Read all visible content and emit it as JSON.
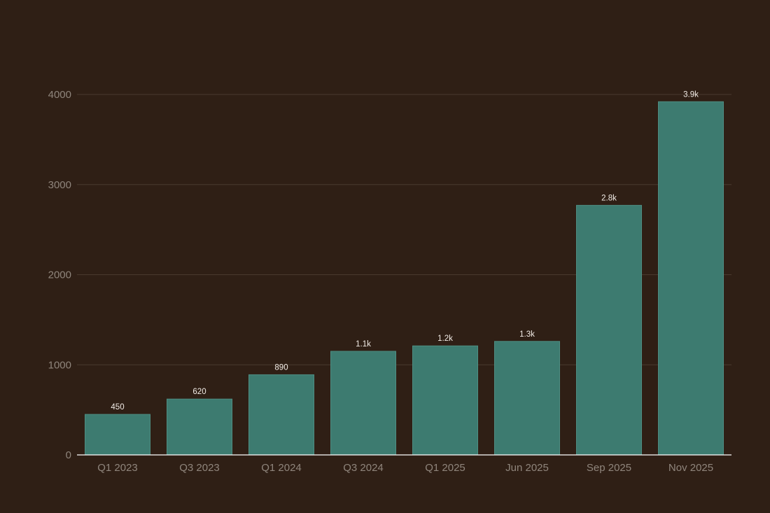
{
  "colors": {
    "background": "#2f1f15",
    "bar": "#3d7b70",
    "bar_edge": "#4e8d82",
    "grid": "#493a2e",
    "baseline": "#ffffff",
    "tick_text": "#8f857c",
    "data_label_text": "#f2ece6"
  },
  "chart_data": {
    "type": "bar",
    "title": "",
    "xlabel": "",
    "ylabel": "",
    "categories": [
      "Q1 2023",
      "Q3 2023",
      "Q1 2024",
      "Q3 2024",
      "Q1 2025",
      "Jun 2025",
      "Sep 2025",
      "Nov 2025"
    ],
    "values": [
      450,
      620,
      890,
      1150,
      1210,
      1260,
      2770,
      3920
    ],
    "data_labels": [
      "450",
      "620",
      "890",
      "1.1k",
      "1.2k",
      "1.3k",
      "2.8k",
      "3.9k"
    ],
    "ylim": [
      0,
      4000
    ],
    "yticks": [
      0,
      1000,
      2000,
      3000,
      4000
    ],
    "ytick_labels": [
      "0",
      "1000",
      "2000",
      "3000",
      "4000"
    ],
    "grid": true,
    "legend": "none"
  }
}
